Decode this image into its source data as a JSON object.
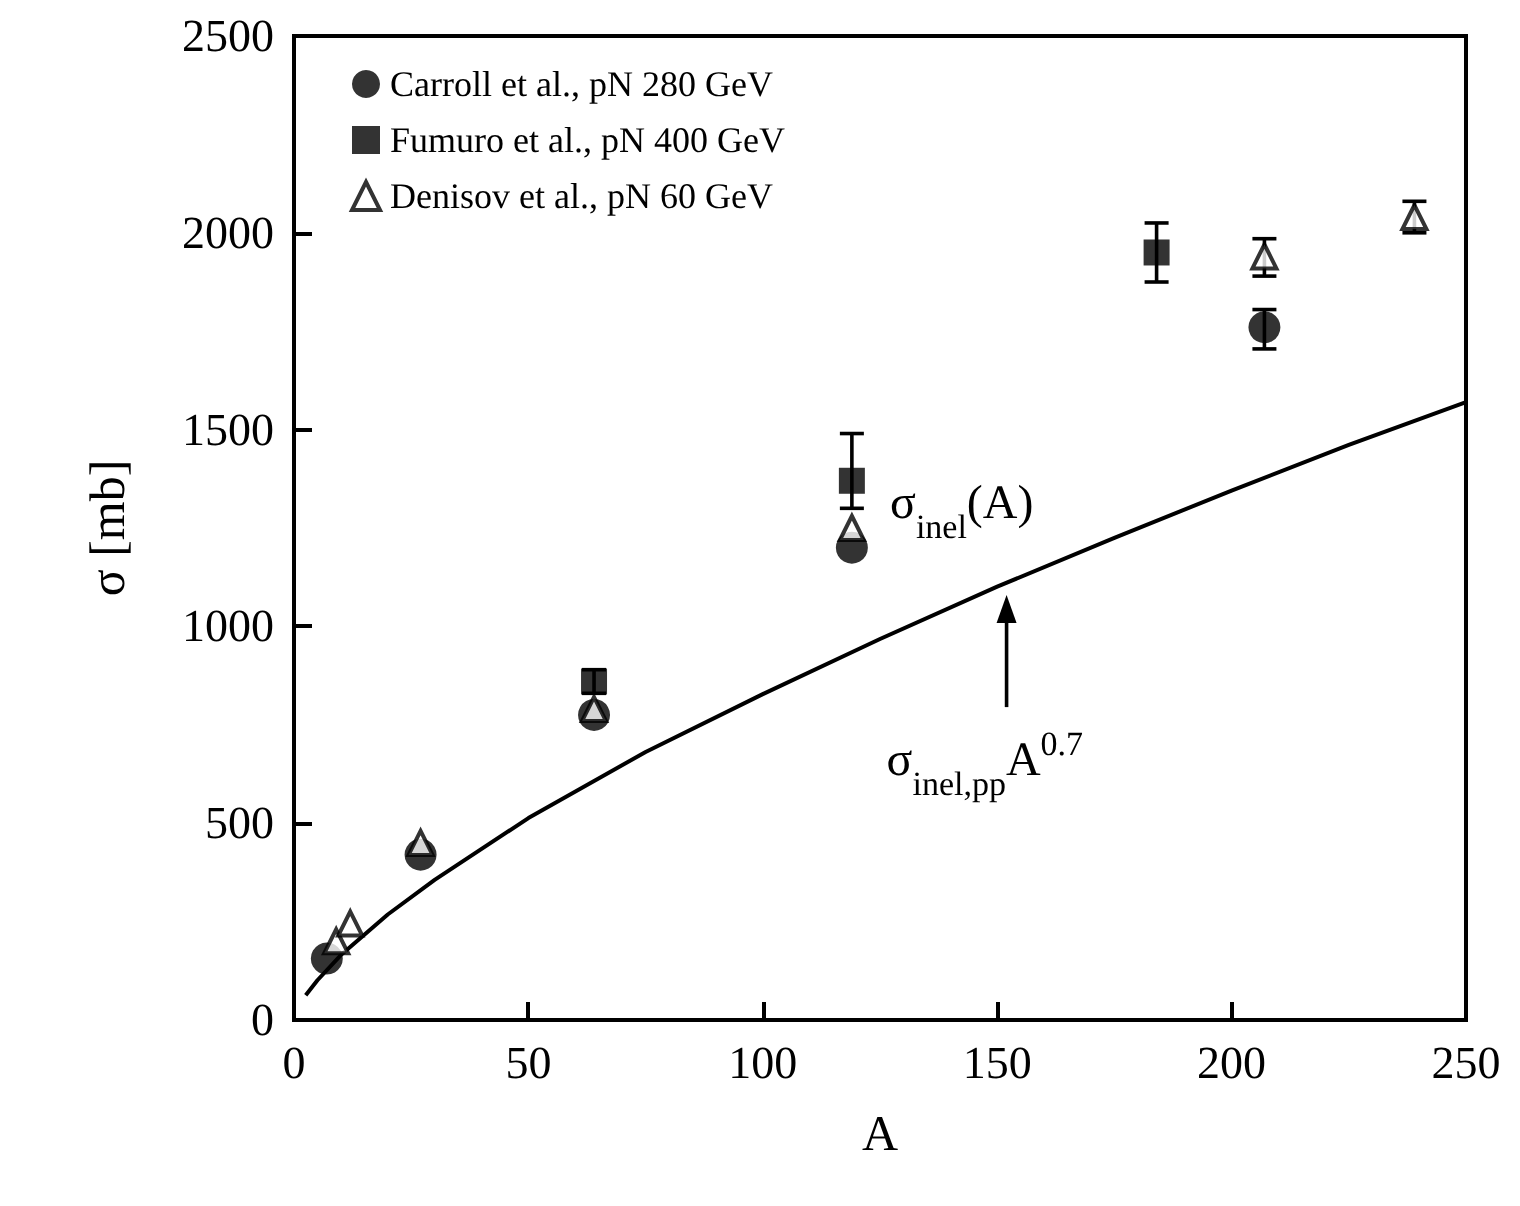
{
  "chart_data": {
    "type": "scatter",
    "xlabel": "A",
    "ylabel": "σ [mb]",
    "xlim": [
      0,
      250
    ],
    "xticks": [
      0,
      50,
      100,
      150,
      200,
      250
    ],
    "ylim": [
      0,
      2500
    ],
    "yticks": [
      0,
      500,
      1000,
      1500,
      2000,
      2500
    ],
    "grid": false,
    "legend": "top left",
    "series": [
      {
        "name": "Carroll et al., pN 280 GeV",
        "color": "#000000",
        "marker": "circle",
        "x": [
          7,
          27,
          64,
          119,
          207
        ],
        "values": [
          156,
          420,
          775,
          1200,
          1760
        ],
        "errors": [
          null,
          null,
          null,
          null,
          [
            1705,
            1805
          ]
        ]
      },
      {
        "name": "Fumuro et al., pN 400 GeV",
        "color": "#000000",
        "marker": "square",
        "x": [
          64,
          119,
          184
        ],
        "values": [
          860,
          1370,
          1950
        ],
        "errors": [
          [
            830,
            890
          ],
          [
            1300,
            1490
          ],
          [
            1875,
            2025
          ]
        ]
      },
      {
        "name": "Denisov et al., pN 60 GeV",
        "color": "#ffffff",
        "marker": "triangle",
        "x": [
          9,
          12,
          27,
          64,
          119,
          207,
          239
        ],
        "values": [
          200,
          245,
          450,
          790,
          1250,
          1940,
          2040
        ],
        "errors": [
          null,
          null,
          null,
          null,
          null,
          [
            1890,
            1985
          ],
          [
            2000,
            2080
          ]
        ]
      },
      {
        "type": "line",
        "color": "#000000",
        "marker": "none",
        "x": [
          2.5,
          5,
          10,
          20,
          30,
          50,
          75,
          100,
          125,
          150,
          175,
          200,
          225,
          250
        ],
        "values": [
          63,
          101,
          165,
          268,
          356,
          513,
          681,
          828,
          968,
          1101,
          1225,
          1345,
          1461,
          1570
        ]
      }
    ],
    "annotations": [
      "σ$_{inel}$(A)",
      {
        "text": "σ$_{inel,pp}$A$^{0.7}$",
        "x": 152,
        "y": 1110
      }
    ]
  }
}
